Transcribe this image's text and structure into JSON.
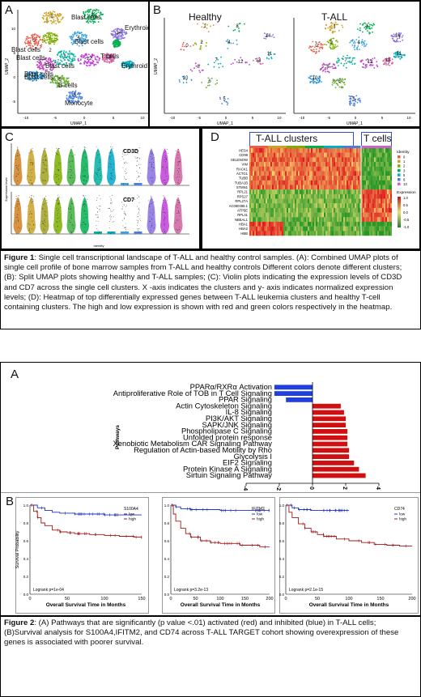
{
  "figure1": {
    "panelA": {
      "label": "A",
      "xlabel": "UMAP_1",
      "ylabel": "UMAP_2",
      "cluster_labels": [
        {
          "text": "Blast cells",
          "cluster": "0"
        },
        {
          "text": "Blast cells",
          "cluster": "1"
        },
        {
          "text": "Blast cells",
          "cluster": "2"
        },
        {
          "text": "Blast cells",
          "cluster": "3"
        },
        {
          "text": "Blast cells",
          "cluster": "4"
        },
        {
          "text": "Blast cells",
          "cluster": "7"
        },
        {
          "text": "Blast cells",
          "cluster": "10"
        },
        {
          "text": "T cells",
          "cluster": "13"
        },
        {
          "text": "Erythroid cells",
          "cluster": "14"
        },
        {
          "text": "Erythroid cells",
          "cluster": "12"
        },
        {
          "text": "B cells",
          "cluster": "6"
        },
        {
          "text": "Monocyte",
          "cluster": "5"
        }
      ],
      "xticks": [
        "-10",
        "-5",
        "0",
        "5",
        "10"
      ],
      "yticks": [
        "10",
        "5",
        "0",
        "-5"
      ]
    },
    "panelB": {
      "label": "B",
      "title_left": "Healthy",
      "title_right": "T-ALL",
      "xlabel": "UMAP_1",
      "ylabel": "UMAP_2",
      "xticks": [
        "-10",
        "-5",
        "0",
        "5",
        "10"
      ]
    },
    "panelC": {
      "label": "C",
      "gene1": "CD3D",
      "gene2": "CD7",
      "ylabel": "Expression level",
      "xlabel": "Identity"
    },
    "panelD": {
      "label": "D",
      "header_tall": "T-ALL clusters",
      "header_t": "T cells",
      "genes": [
        "HES4",
        "CD99",
        "SELENOW",
        "VIM",
        "RACK1",
        "ACTG1",
        "TUBB",
        "TUBA1B",
        "STMN1",
        "RPL21",
        "RPS27",
        "RPL27A",
        "AC090498.1",
        "ATP5E",
        "RPL41",
        "NBEAL1",
        "HBA1",
        "HBA2",
        "HBB"
      ],
      "legend_identity_title": "Identity",
      "identity_items": [
        {
          "label": "0",
          "color": "#e8604c"
        },
        {
          "label": "1",
          "color": "#c9a227"
        },
        {
          "label": "2",
          "color": "#7cae00"
        },
        {
          "label": "3",
          "color": "#00b050"
        },
        {
          "label": "5",
          "color": "#00b0c8"
        },
        {
          "label": "6",
          "color": "#4a7fe0"
        },
        {
          "label": "13",
          "color": "#d060d0"
        }
      ],
      "legend_expr_title": "Expression",
      "expr_ticks": [
        "1.0",
        "0.5",
        "0.0",
        "-0.5",
        "-1.0"
      ]
    },
    "caption_bold": "Figure 1",
    "caption_text": ": Single cell transcriptional landscape of T-ALL and healthy control samples. (A): Combined UMAP plots of single cell profile of bone marrow samples from T-ALL and healthy controls Different colors denote different clusters; (B): Split UMAP plots showing healthy and T-ALL samples; (C): Violin plots indicating the expression levels of CD3D and CD7 across the single cell clusters. X -axis indicates the clusters and y- axis indicates normalized expression levels; (D): Heatmap of top differentially expressed genes between T-ALL leukemia clusters and healthy T-cell containing clusters. The high and low expression is shown with red and green colors respectively in the heatmap."
  },
  "figure2": {
    "panelA_label": "A",
    "panelB_label": "B",
    "chart_data": [
      {
        "type": "bar",
        "orientation": "horizontal",
        "ylabel": "Pathways",
        "categories": [
          "PPARα/RXRα Activation",
          "Antiproliferative Role of TOB in T Cell Signaling",
          "PPAR Signaling",
          "Actin Cytoskeleton Signaling",
          "IL-8 Signaling",
          "PI3K/AKT Signaling",
          "SAPK/JNK Signaling",
          "Phospholipase C Signaling",
          "Unfolded protein response",
          "Xenobiotic Metabolism CAR Signaling Pathway",
          "Regulation of Actin-based Motility by Rho",
          "Glycolysis I",
          "EIF2 Signaling",
          "Protein Kinase A Signaling",
          "Sirtuin Signaling Pathway"
        ],
        "values": [
          -2.3,
          -2.3,
          -1.6,
          1.7,
          1.9,
          2.0,
          2.0,
          2.1,
          2.1,
          2.1,
          2.2,
          2.2,
          2.5,
          2.8,
          3.2
        ],
        "colors": {
          "activated": "#d01010",
          "inhibited": "#1f3fe0"
        },
        "xticks": [
          "-4",
          "-2",
          "0",
          "2",
          "4"
        ],
        "xlim": [
          -4,
          4
        ]
      },
      {
        "type": "line",
        "gene": "S100A4",
        "ylabel": "Survival Probability",
        "xlabel": "Overall Survival Time in Months",
        "legend": [
          "low",
          "high"
        ],
        "logrank": "Logrank p=1e-04",
        "xticks": [
          "0",
          "50",
          "100",
          "150"
        ],
        "yticks": [
          "0.0",
          "0.2",
          "0.4",
          "0.6",
          "0.8",
          "1.0"
        ],
        "xlim": [
          0,
          150
        ],
        "ylim": [
          0,
          1
        ],
        "series": [
          {
            "name": "low",
            "color": "#2030c0",
            "x": [
              0,
              10,
              20,
              30,
              40,
              60,
              80,
              100,
              120,
              140,
              150
            ],
            "y": [
              1.0,
              0.97,
              0.94,
              0.92,
              0.91,
              0.9,
              0.9,
              0.89,
              0.89,
              0.89,
              0.89
            ]
          },
          {
            "name": "high",
            "color": "#a01818",
            "x": [
              0,
              5,
              10,
              15,
              20,
              30,
              40,
              50,
              60,
              80,
              100,
              120,
              140,
              150
            ],
            "y": [
              1.0,
              0.93,
              0.86,
              0.8,
              0.77,
              0.72,
              0.7,
              0.69,
              0.68,
              0.67,
              0.66,
              0.65,
              0.64,
              0.64
            ]
          }
        ]
      },
      {
        "type": "line",
        "gene": "IFITM2",
        "ylabel": "",
        "xlabel": "Overall Survival Time in Months",
        "legend": [
          "low",
          "high"
        ],
        "logrank": "Logrank p=3.2e-13",
        "xticks": [
          "0",
          "50",
          "100",
          "150",
          "200"
        ],
        "yticks": [
          "0.0",
          "0.2",
          "0.4",
          "0.6",
          "0.8",
          "1.0"
        ],
        "xlim": [
          0,
          200
        ],
        "ylim": [
          0,
          1
        ],
        "series": [
          {
            "name": "low",
            "color": "#2030c0",
            "x": [
              0,
              10,
              20,
              40,
              60,
              100,
              140,
              180,
              200
            ],
            "y": [
              1.0,
              0.98,
              0.96,
              0.95,
              0.95,
              0.94,
              0.94,
              0.94,
              0.94
            ]
          },
          {
            "name": "high",
            "color": "#a01818",
            "x": [
              0,
              5,
              10,
              20,
              30,
              40,
              60,
              80,
              100,
              140,
              180,
              200
            ],
            "y": [
              1.0,
              0.9,
              0.82,
              0.74,
              0.68,
              0.64,
              0.6,
              0.58,
              0.57,
              0.55,
              0.53,
              0.53
            ]
          }
        ]
      },
      {
        "type": "line",
        "gene": "CD74",
        "ylabel": "",
        "xlabel": "Overall Survival Time in Months",
        "legend": [
          "low",
          "high"
        ],
        "logrank": "Logrank p=2.1e-15",
        "xticks": [
          "0",
          "50",
          "100",
          "150",
          "200"
        ],
        "yticks": [
          "0.0",
          "0.2",
          "0.4",
          "0.6",
          "0.8",
          "1.0"
        ],
        "xlim": [
          0,
          200
        ],
        "ylim": [
          0,
          1
        ],
        "series": [
          {
            "name": "low",
            "color": "#2030c0",
            "x": [
              0,
              10,
              20,
              40,
              60,
              80,
              100
            ],
            "y": [
              1.0,
              0.97,
              0.95,
              0.94,
              0.94,
              0.94,
              0.94
            ]
          },
          {
            "name": "high",
            "color": "#a01818",
            "x": [
              0,
              5,
              10,
              20,
              30,
              40,
              50,
              60,
              80,
              100,
              120,
              140,
              160,
              180,
              200
            ],
            "y": [
              1.0,
              0.92,
              0.86,
              0.79,
              0.74,
              0.7,
              0.67,
              0.65,
              0.62,
              0.6,
              0.58,
              0.56,
              0.55,
              0.54,
              0.54
            ]
          }
        ]
      }
    ],
    "caption_bold": "Figure 2",
    "caption_text": ": (A) Pathways that are significantly (p value <.01) activated (red) and inhibited (blue) in T-ALL cells; (B)Survival analysis for S100A4,IFITM2, and CD74 across T-ALL TARGET cohort showing overexpression of these genes is associated with poorer survival."
  }
}
